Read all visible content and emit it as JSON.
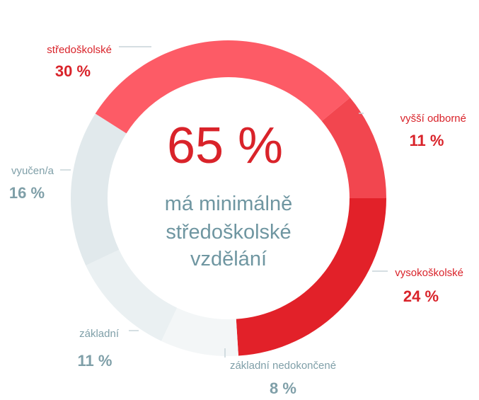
{
  "chart_data": {
    "type": "pie",
    "style": "donut",
    "center": {
      "value": "65 %",
      "caption_lines": [
        "má minimálně",
        "středoškolské",
        "vzdělání"
      ]
    },
    "slices": [
      {
        "label": "vysokoškolské",
        "value": 24,
        "value_label": "24 %",
        "color": "#e22129",
        "text_color": "#d9232a"
      },
      {
        "label": "základní nedokončené",
        "value": 8,
        "value_label": "8 %",
        "color": "#f3f6f7",
        "text_color": "#7f9fa8"
      },
      {
        "label": "základní",
        "value": 11,
        "value_label": "11 %",
        "color": "#eaf0f2",
        "text_color": "#7f9fa8"
      },
      {
        "label": "vyučen/a",
        "value": 16,
        "value_label": "16 %",
        "color": "#e1e9ec",
        "text_color": "#7f9fa8"
      },
      {
        "label": "středoškolské",
        "value": 30,
        "value_label": "30 %",
        "color": "#fd5b66",
        "text_color": "#d9232a"
      },
      {
        "label": "vyšší odborné",
        "value": 11,
        "value_label": "11 %",
        "color": "#f2464f",
        "text_color": "#d9232a"
      }
    ],
    "colors": {
      "center_value": "#d9232a",
      "center_caption": "#6f96a1",
      "leader_line": "#c7d4d8"
    }
  }
}
